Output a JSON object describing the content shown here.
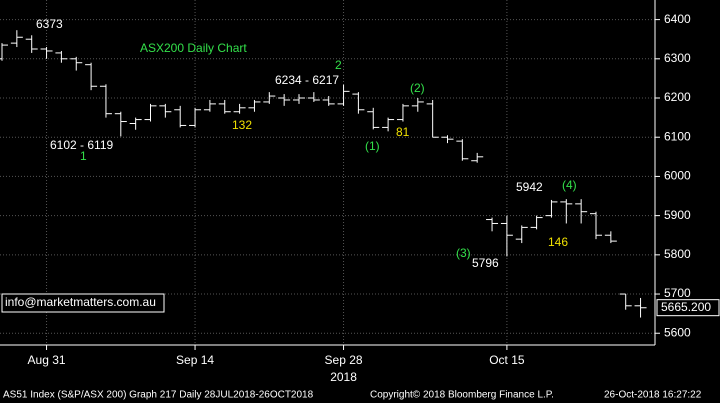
{
  "chart_data": {
    "type": "ohlc",
    "title": "ASX200 Daily Chart",
    "categories": [
      null,
      null,
      null,
      "Aug 31",
      null,
      null,
      null,
      null,
      null,
      null,
      null,
      null,
      null,
      "Sep 14",
      null,
      null,
      null,
      null,
      null,
      null,
      null,
      null,
      null,
      "Sep 28",
      null,
      null,
      null,
      null,
      null,
      null,
      null,
      null,
      null,
      null,
      "Oct 15",
      null,
      null,
      null,
      null,
      null,
      null,
      null,
      null,
      null
    ],
    "x_sublabel": "2018",
    "open": [
      6300,
      6340,
      6350,
      6325,
      6315,
      6300,
      6285,
      6230,
      6160,
      6135,
      6145,
      6180,
      6170,
      6130,
      6170,
      6185,
      6165,
      6175,
      6190,
      6200,
      6195,
      6200,
      6195,
      6185,
      6210,
      6165,
      6125,
      6145,
      6180,
      6185,
      6100,
      6090,
      6040,
      5890,
      5880,
      5840,
      5870,
      5900,
      5935,
      5930,
      5905,
      5850,
      5700,
      5670
    ],
    "high": [
      6340,
      6373,
      6360,
      6330,
      6320,
      6305,
      6290,
      6235,
      6165,
      6150,
      6185,
      6185,
      6180,
      6175,
      6195,
      6195,
      6185,
      6195,
      6215,
      6210,
      6210,
      6215,
      6205,
      6234,
      6215,
      6175,
      6150,
      6185,
      6200,
      6195,
      6105,
      6095,
      6060,
      5895,
      5900,
      5875,
      5900,
      5940,
      5942,
      5942,
      5910,
      5860,
      5700,
      5690
    ],
    "low": [
      6295,
      6330,
      6315,
      6300,
      6290,
      6270,
      6220,
      6150,
      6102,
      6119,
      6140,
      6150,
      6125,
      6125,
      6165,
      6160,
      6160,
      6165,
      6185,
      6180,
      6185,
      6190,
      6180,
      6180,
      6160,
      6120,
      6115,
      6140,
      6165,
      6100,
      6085,
      6040,
      6035,
      5860,
      5796,
      5830,
      5865,
      5895,
      5880,
      5880,
      5840,
      5830,
      5660,
      5640
    ],
    "close": [
      6335,
      6355,
      6325,
      6320,
      6300,
      6290,
      6230,
      6160,
      6140,
      6145,
      6180,
      6165,
      6130,
      6170,
      6185,
      6165,
      6175,
      6190,
      6205,
      6195,
      6200,
      6195,
      6185,
      6217,
      6170,
      6125,
      6145,
      6180,
      6190,
      6100,
      6095,
      6045,
      6050,
      5880,
      5850,
      5870,
      5895,
      5935,
      5930,
      5910,
      5850,
      5835,
      5670,
      5665
    ],
    "color": "#ffffff",
    "ylim": [
      5570,
      6450
    ],
    "yticks": [
      5600,
      5700,
      5800,
      5900,
      6000,
      6100,
      6200,
      6300,
      6400
    ],
    "grid": true,
    "last_price": {
      "value": 5665.2,
      "label": "5665.200"
    },
    "annotations": [
      "6373",
      "6102 - 6119",
      "1",
      "132",
      "6234 - 6217",
      "2",
      "(1)",
      "81",
      "(2)",
      "(3)",
      "5796",
      "5942",
      "(4)",
      "146"
    ],
    "contact": "info@marketmatters.com.au",
    "footer": [
      "AS51 Index (S&P/ASX 200) Graph 217  Daily 28JUL2018-26OCT2018",
      "Copyright© 2018 Bloomberg Finance L.P.",
      "26-Oct-2018 16:27:22"
    ]
  }
}
